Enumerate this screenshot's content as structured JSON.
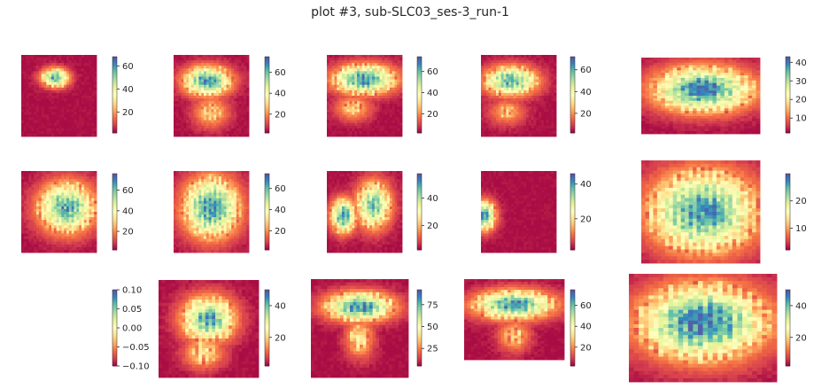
{
  "title": "plot #3, sub-SLC03_ses-3_run-1",
  "colors": {
    "colormap": "Spectral",
    "stops": [
      "#9e0142",
      "#d53e4f",
      "#f46d43",
      "#fdae61",
      "#fee08b",
      "#ffffbf",
      "#e6f598",
      "#abdda4",
      "#66c2a5",
      "#3288bd",
      "#5e4fa2"
    ],
    "background": "#ffffff",
    "text": "#262626"
  },
  "chart_data": [
    {
      "type": "heatmap",
      "row": 1,
      "col": 1,
      "shape": "small-blob",
      "colorbar_ticks": [
        "20",
        "40",
        "60"
      ],
      "vmin": 2,
      "vmax": 68
    },
    {
      "type": "heatmap",
      "row": 1,
      "col": 2,
      "shape": "brain-top",
      "colorbar_ticks": [
        "20",
        "40",
        "60"
      ],
      "vmin": 2,
      "vmax": 75
    },
    {
      "type": "heatmap",
      "row": 1,
      "col": 3,
      "shape": "brain-wide",
      "colorbar_ticks": [
        "20",
        "40",
        "60"
      ],
      "vmin": 2,
      "vmax": 74
    },
    {
      "type": "heatmap",
      "row": 1,
      "col": 4,
      "shape": "brain-left",
      "colorbar_ticks": [
        "20",
        "40",
        "60"
      ],
      "vmin": 2,
      "vmax": 72
    },
    {
      "type": "heatmap",
      "row": 1,
      "col": 5,
      "shape": "oval-wide",
      "colorbar_ticks": [
        "10",
        "20",
        "30",
        "40"
      ],
      "vmin": 2,
      "vmax": 43
    },
    {
      "type": "heatmap",
      "row": 2,
      "col": 1,
      "shape": "brain-right",
      "colorbar_ticks": [
        "20",
        "40",
        "60"
      ],
      "vmin": 2,
      "vmax": 76
    },
    {
      "type": "heatmap",
      "row": 2,
      "col": 2,
      "shape": "round",
      "colorbar_ticks": [
        "20",
        "40",
        "60"
      ],
      "vmin": 2,
      "vmax": 74
    },
    {
      "type": "heatmap",
      "row": 2,
      "col": 3,
      "shape": "two-lobes",
      "colorbar_ticks": [
        "20",
        "40"
      ],
      "vmin": 2,
      "vmax": 58
    },
    {
      "type": "heatmap",
      "row": 2,
      "col": 4,
      "shape": "edge-blob",
      "colorbar_ticks": [
        "20",
        "40"
      ],
      "vmin": 2,
      "vmax": 46
    },
    {
      "type": "heatmap",
      "row": 2,
      "col": 5,
      "shape": "oval-large",
      "colorbar_ticks": [
        "10",
        "20"
      ],
      "vmin": 2,
      "vmax": 30
    },
    {
      "type": "heatmap",
      "row": 3,
      "col": 1,
      "shape": "empty",
      "colorbar_ticks": [
        "0.10",
        "0.05",
        "0.00",
        "−0.05",
        "−0.10"
      ],
      "vmin": -0.1,
      "vmax": 0.1
    },
    {
      "type": "heatmap",
      "row": 3,
      "col": 2,
      "shape": "brain-lower",
      "colorbar_ticks": [
        "20",
        "40"
      ],
      "vmin": 2,
      "vmax": 50
    },
    {
      "type": "heatmap",
      "row": 3,
      "col": 3,
      "shape": "brain-top-narrow",
      "colorbar_ticks": [
        "25",
        "50",
        "75"
      ],
      "vmin": 5,
      "vmax": 92
    },
    {
      "type": "heatmap",
      "row": 3,
      "col": 4,
      "shape": "brain-top-wide",
      "colorbar_ticks": [
        "20",
        "40",
        "60"
      ],
      "vmin": 2,
      "vmax": 75
    },
    {
      "type": "heatmap",
      "row": 3,
      "col": 5,
      "shape": "oval-diamond",
      "colorbar_ticks": [
        "20",
        "40"
      ],
      "vmin": 2,
      "vmax": 50
    }
  ]
}
